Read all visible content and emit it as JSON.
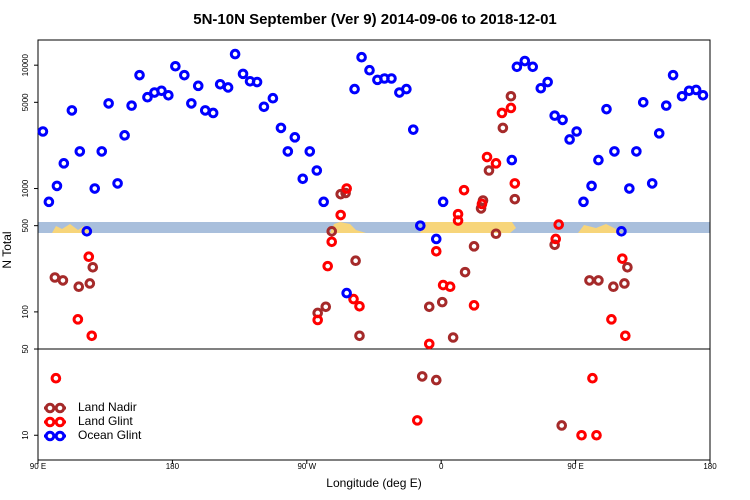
{
  "chart_data": {
    "type": "scatter",
    "title": "5N-10N September (Ver 9)   2014-09-06 to 2018-12-01",
    "xlabel": "Longitude (deg E)",
    "ylabel": "N Total",
    "log_y": true,
    "legend": "lower left",
    "hline": 50,
    "xlim": [
      90,
      540
    ],
    "xticks": [
      {
        "value": 90,
        "label": "90 E"
      },
      180,
      {
        "value": 270,
        "label": "90 W"
      },
      {
        "value": 360,
        "label": "0"
      },
      {
        "value": 450,
        "label": "90 E"
      },
      {
        "value": 540,
        "label": "180"
      }
    ],
    "ylim": [
      6.3,
      16000
    ],
    "yticks": [
      10,
      50,
      100,
      500,
      1000,
      5000,
      10000
    ],
    "series": [
      {
        "name": "Land Nadir",
        "color": "#a52a2a",
        "x": [
          101.3,
          106.7,
          117.3,
          124.7,
          126.7,
          277.3,
          282.7,
          286.7,
          292.7,
          296,
          302.7,
          305.3,
          347.3,
          352,
          356.7,
          360.7,
          368,
          376,
          382,
          386.7,
          388,
          392,
          396.7,
          401.3,
          406.7,
          409.3,
          436,
          440.7,
          459.3,
          465.3,
          475.3,
          482.7,
          484.7
        ],
        "values": [
          190,
          180,
          160,
          170,
          230,
          98,
          110,
          450,
          900,
          920,
          260,
          64,
          30,
          110,
          28,
          120,
          62,
          210,
          340,
          690,
          800,
          1400,
          430,
          3100,
          5600,
          820,
          350,
          12,
          180,
          180,
          160,
          170,
          230
        ]
      },
      {
        "name": "Land Glint",
        "color": "#ff0000",
        "x": [
          102,
          116.7,
          124,
          126,
          277.3,
          286.7,
          284,
          292.7,
          296.7,
          301.3,
          305.3,
          344,
          352,
          356.7,
          361.3,
          366,
          371.3,
          371.3,
          375.3,
          382,
          387.3,
          390.7,
          396.7,
          400.7,
          406.7,
          409.3,
          438.7,
          436.7,
          454,
          461.3,
          464,
          474,
          481.3,
          483.3
        ],
        "values": [
          29,
          87,
          280,
          64,
          86,
          370,
          235,
          610,
          1000,
          127,
          111,
          13.2,
          55,
          310,
          165,
          160,
          550,
          620,
          970,
          113,
          750,
          1800,
          1600,
          4100,
          4500,
          1100,
          510,
          390,
          10,
          29,
          10,
          87,
          270,
          64
        ]
      },
      {
        "name": "Ocean Glint",
        "color": "#0000ff",
        "x": [
          93.3,
          97.3,
          102.7,
          107.3,
          112.7,
          118,
          122.7,
          128,
          132.7,
          137.3,
          143.3,
          148,
          152.7,
          158,
          163.3,
          168,
          172.7,
          177.3,
          182,
          188,
          192.7,
          197.3,
          202,
          207.3,
          212,
          217.3,
          222,
          227.3,
          232,
          236.7,
          241.3,
          247.3,
          252.7,
          257.3,
          262,
          267.3,
          272,
          276.7,
          281.3,
          296.7,
          302,
          306.7,
          312,
          317.3,
          322,
          326.7,
          332,
          336.7,
          341.3,
          346,
          356.7,
          361.3,
          407.3,
          410.7,
          416,
          421.3,
          426.7,
          431.3,
          436,
          441.3,
          446,
          450.7,
          455.3,
          460.7,
          465.3,
          470.7,
          476,
          480.7,
          486,
          490.7,
          495.3,
          501.3,
          506,
          510.7,
          515.3,
          521.3,
          526,
          530.7,
          535.3
        ],
        "values": [
          2900,
          780,
          1050,
          1600,
          4300,
          2000,
          450,
          1000,
          2000,
          4900,
          1100,
          2700,
          4700,
          8300,
          5500,
          6000,
          6200,
          5700,
          9800,
          8300,
          4900,
          6800,
          4300,
          4100,
          7000,
          6600,
          12300,
          8500,
          7400,
          7300,
          4600,
          5400,
          3100,
          2000,
          2600,
          1200,
          2000,
          1400,
          780,
          142,
          6400,
          11600,
          9100,
          7600,
          7800,
          7800,
          6000,
          6400,
          3000,
          500,
          390,
          780,
          1700,
          9700,
          10800,
          9700,
          6500,
          7300,
          3900,
          3600,
          2500,
          2900,
          780,
          1050,
          1700,
          4400,
          2000,
          450,
          1000,
          2000,
          5000,
          1100,
          2800,
          4700,
          8300,
          5600,
          6200,
          6300,
          5700
        ]
      }
    ]
  }
}
